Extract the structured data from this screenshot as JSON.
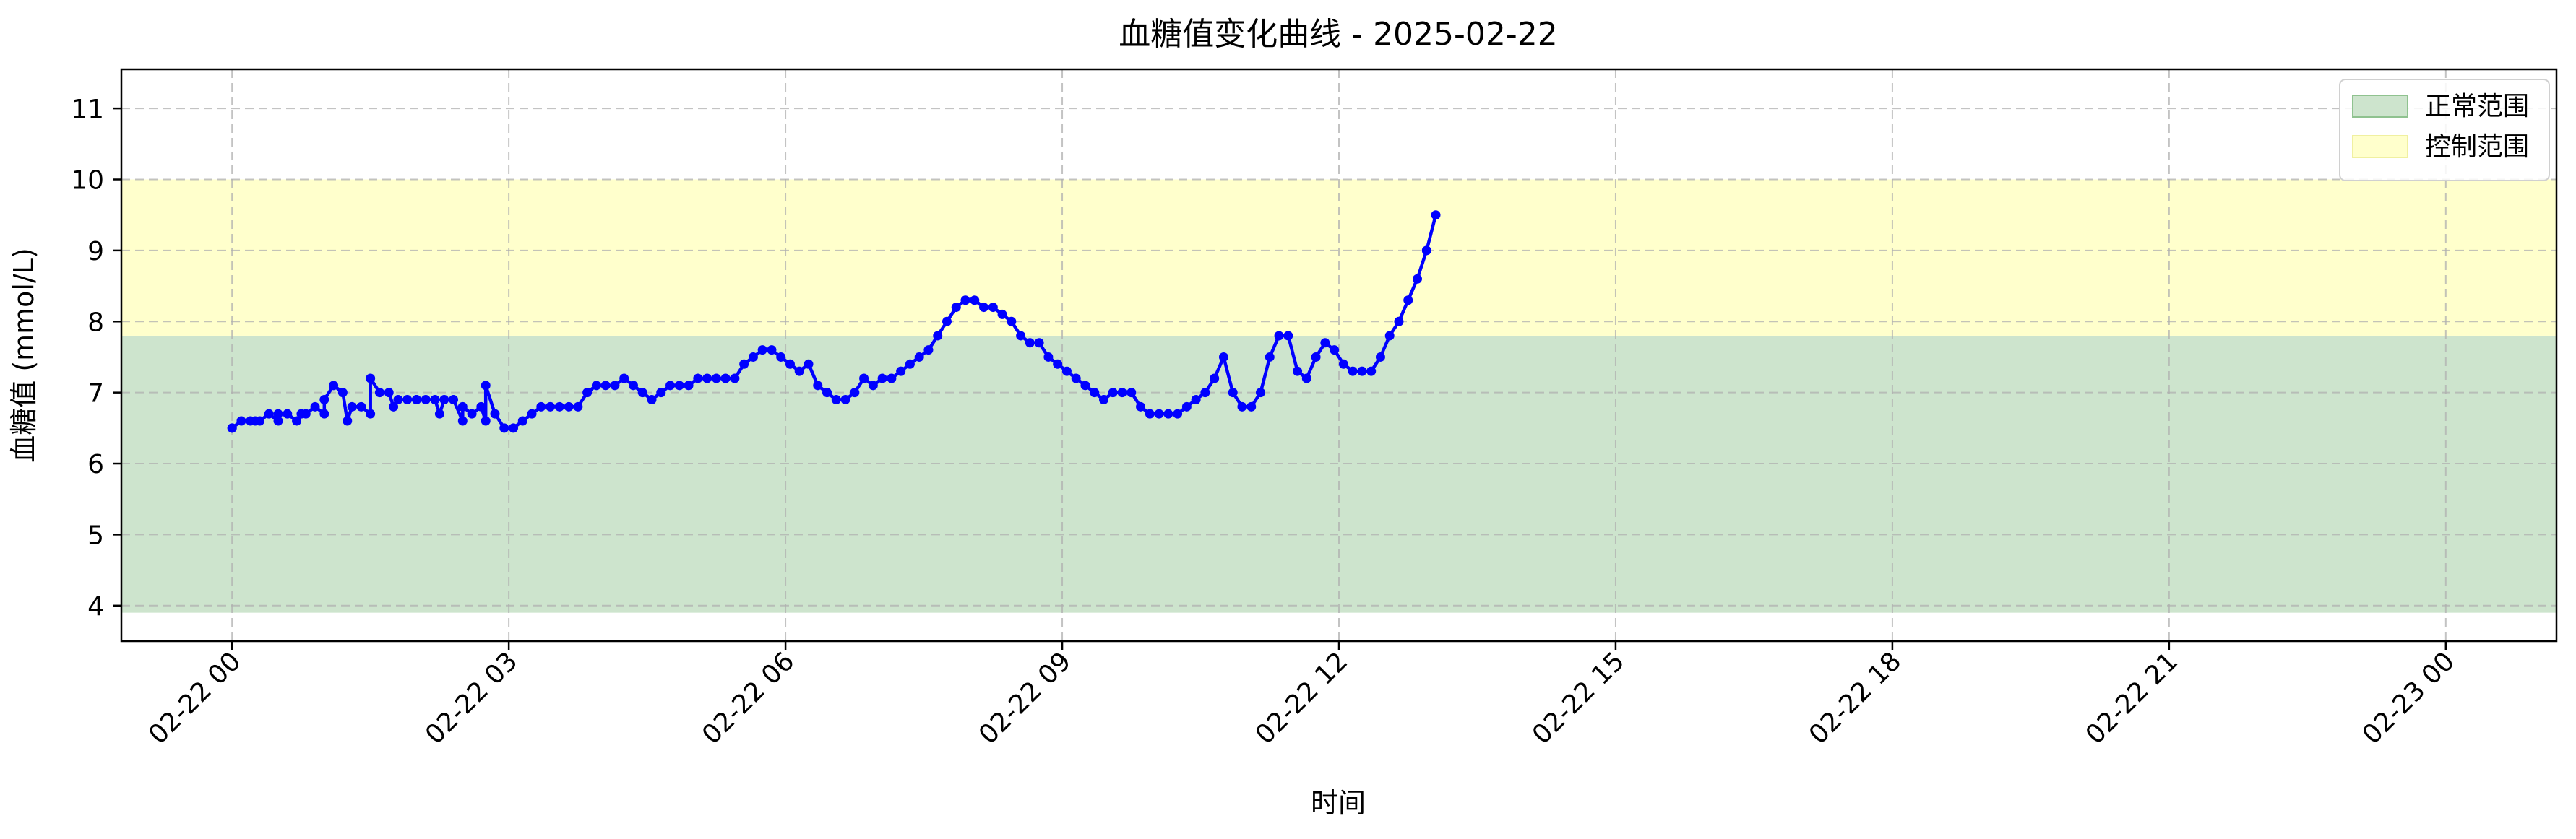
{
  "chart_data": {
    "type": "line",
    "title": "血糖值变化曲线 - 2025-02-22",
    "xlabel": "时间",
    "ylabel": "血糖值 (mmol/L)",
    "ylim": [
      3.5,
      11.55
    ],
    "xlim": [
      -1.2,
      25.2
    ],
    "x_unit": "hours since 2025-02-22 00:00",
    "yticks": [
      4,
      5,
      6,
      7,
      8,
      9,
      10,
      11
    ],
    "xticks": [
      {
        "x": 0,
        "label": "02-22 00"
      },
      {
        "x": 3,
        "label": "02-22 03"
      },
      {
        "x": 6,
        "label": "02-22 06"
      },
      {
        "x": 9,
        "label": "02-22 09"
      },
      {
        "x": 12,
        "label": "02-22 12"
      },
      {
        "x": 15,
        "label": "02-22 15"
      },
      {
        "x": 18,
        "label": "02-22 18"
      },
      {
        "x": 21,
        "label": "02-22 21"
      },
      {
        "x": 24,
        "label": "02-23 00"
      }
    ],
    "grid": true,
    "legend_position": "top-right",
    "bands": [
      {
        "name": "正常范围",
        "y0": 3.9,
        "y1": 7.8,
        "color": "#cde4cd",
        "edge": "#8fc28f"
      },
      {
        "name": "控制范围",
        "y0": 7.8,
        "y1": 10.0,
        "color": "#ffffcc",
        "edge": "#f0f0a0"
      }
    ],
    "series": [
      {
        "line_color": "#0000ff",
        "marker": "circle",
        "points": [
          [
            0.0,
            6.5
          ],
          [
            0.25,
            6.6
          ],
          [
            0.5,
            6.6
          ],
          [
            0.75,
            6.7
          ],
          [
            1.0,
            6.7
          ],
          [
            1.25,
            6.6
          ],
          [
            1.5,
            6.7
          ],
          [
            1.75,
            6.8
          ],
          [
            2.0,
            6.9
          ],
          [
            2.25,
            6.7
          ],
          [
            2.5,
            6.6
          ],
          [
            2.75,
            6.6
          ],
          [
            0.0,
            6.5
          ],
          [
            0.1,
            6.6
          ],
          [
            0.2,
            6.6
          ],
          [
            0.3,
            6.6
          ],
          [
            0.4,
            6.7
          ],
          [
            0.5,
            6.7
          ],
          [
            0.6,
            6.7
          ],
          [
            0.7,
            6.6
          ],
          [
            0.8,
            6.7
          ],
          [
            0.9,
            6.8
          ],
          [
            1.0,
            6.9
          ],
          [
            1.1,
            7.1
          ],
          [
            1.2,
            7.0
          ],
          [
            1.3,
            6.8
          ],
          [
            1.4,
            6.8
          ],
          [
            1.5,
            7.2
          ],
          [
            1.6,
            7.0
          ],
          [
            1.7,
            7.0
          ],
          [
            1.8,
            6.9
          ],
          [
            1.9,
            6.9
          ],
          [
            2.0,
            6.9
          ],
          [
            2.1,
            6.9
          ],
          [
            2.2,
            6.9
          ],
          [
            2.3,
            6.9
          ],
          [
            2.4,
            6.9
          ],
          [
            2.5,
            6.8
          ],
          [
            2.6,
            6.7
          ],
          [
            2.7,
            6.8
          ],
          [
            2.75,
            7.1
          ],
          [
            2.85,
            6.7
          ],
          [
            2.95,
            6.5
          ],
          [
            3.05,
            6.5
          ],
          [
            3.15,
            6.6
          ],
          [
            3.25,
            6.7
          ],
          [
            3.35,
            6.8
          ],
          [
            3.45,
            6.8
          ],
          [
            3.55,
            6.8
          ],
          [
            3.65,
            6.8
          ],
          [
            3.75,
            6.8
          ],
          [
            3.85,
            7.0
          ],
          [
            3.95,
            7.1
          ],
          [
            4.05,
            7.1
          ],
          [
            4.15,
            7.1
          ],
          [
            4.25,
            7.2
          ],
          [
            4.35,
            7.1
          ],
          [
            4.45,
            7.0
          ],
          [
            4.55,
            6.9
          ],
          [
            4.65,
            7.0
          ],
          [
            4.75,
            7.1
          ],
          [
            4.85,
            7.1
          ],
          [
            4.95,
            7.1
          ],
          [
            5.05,
            7.2
          ],
          [
            5.15,
            7.2
          ],
          [
            5.25,
            7.2
          ],
          [
            5.35,
            7.2
          ],
          [
            5.45,
            7.2
          ],
          [
            5.55,
            7.4
          ],
          [
            5.65,
            7.5
          ],
          [
            5.75,
            7.6
          ],
          [
            5.85,
            7.6
          ],
          [
            5.95,
            7.5
          ],
          [
            6.05,
            7.4
          ],
          [
            6.15,
            7.3
          ],
          [
            6.25,
            7.4
          ],
          [
            6.35,
            7.1
          ],
          [
            6.45,
            7.0
          ],
          [
            6.55,
            6.9
          ],
          [
            6.65,
            6.9
          ],
          [
            6.75,
            7.0
          ],
          [
            6.85,
            7.2
          ],
          [
            6.95,
            7.1
          ],
          [
            7.05,
            7.2
          ],
          [
            7.15,
            7.2
          ],
          [
            7.25,
            7.3
          ],
          [
            7.35,
            7.4
          ],
          [
            7.45,
            7.5
          ],
          [
            7.55,
            7.6
          ],
          [
            7.65,
            7.8
          ],
          [
            7.75,
            8.0
          ],
          [
            7.85,
            8.2
          ],
          [
            7.95,
            8.3
          ],
          [
            8.05,
            8.3
          ],
          [
            8.15,
            8.2
          ],
          [
            8.25,
            8.2
          ],
          [
            8.35,
            8.1
          ],
          [
            8.45,
            8.0
          ],
          [
            8.55,
            7.8
          ],
          [
            8.65,
            7.7
          ],
          [
            8.75,
            7.7
          ],
          [
            8.85,
            7.5
          ],
          [
            8.95,
            7.4
          ],
          [
            9.05,
            7.3
          ],
          [
            9.15,
            7.2
          ],
          [
            9.25,
            7.1
          ],
          [
            9.35,
            7.0
          ],
          [
            9.45,
            6.9
          ],
          [
            9.55,
            7.0
          ],
          [
            9.65,
            7.0
          ],
          [
            9.75,
            7.0
          ],
          [
            9.85,
            6.8
          ],
          [
            9.95,
            6.7
          ],
          [
            10.05,
            6.7
          ],
          [
            10.15,
            6.7
          ],
          [
            10.25,
            6.7
          ],
          [
            10.35,
            6.8
          ],
          [
            10.45,
            6.9
          ],
          [
            10.55,
            7.0
          ],
          [
            10.65,
            7.2
          ],
          [
            10.75,
            7.5
          ],
          [
            10.85,
            7.0
          ],
          [
            10.95,
            6.8
          ],
          [
            11.05,
            6.8
          ],
          [
            11.15,
            7.0
          ],
          [
            11.25,
            7.5
          ],
          [
            11.35,
            7.8
          ],
          [
            11.45,
            7.8
          ],
          [
            11.55,
            7.3
          ],
          [
            11.65,
            7.2
          ],
          [
            11.75,
            7.5
          ],
          [
            11.85,
            7.7
          ],
          [
            11.95,
            7.6
          ],
          [
            12.05,
            7.4
          ],
          [
            12.15,
            7.3
          ],
          [
            12.25,
            7.3
          ],
          [
            12.35,
            7.3
          ],
          [
            12.45,
            7.5
          ],
          [
            12.55,
            7.8
          ],
          [
            12.65,
            8.0
          ],
          [
            12.75,
            8.3
          ],
          [
            12.85,
            8.6
          ],
          [
            12.95,
            9.0
          ],
          [
            13.05,
            9.5
          ]
        ]
      }
    ]
  }
}
